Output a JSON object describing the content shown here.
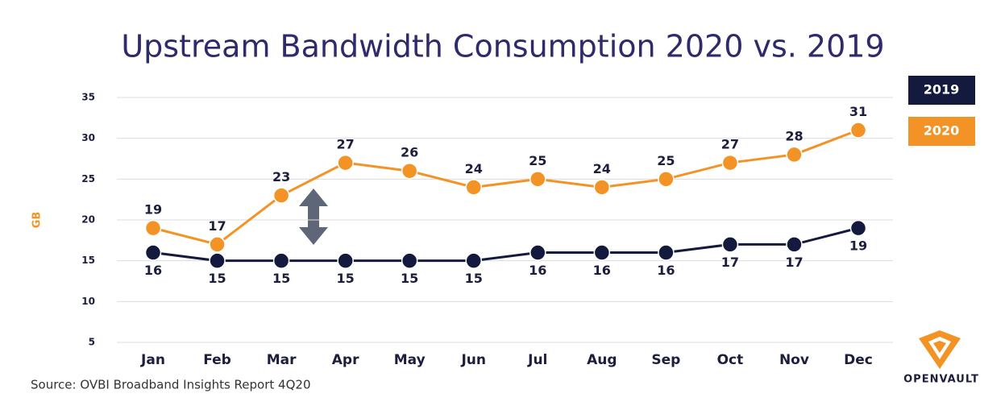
{
  "chart_data": {
    "type": "line",
    "title": "Upstream Bandwidth  Consumption 2020 vs. 2019",
    "y_label": "GB",
    "source": "Source: OVBI Broadband Insights Report 4Q20",
    "logo": "OPENVAULT",
    "categories": [
      "Jan",
      "Feb",
      "Mar",
      "Apr",
      "May",
      "Jun",
      "Jul",
      "Aug",
      "Sep",
      "Oct",
      "Nov",
      "Dec"
    ],
    "series": [
      {
        "name": "2019",
        "color": "#131a3d",
        "values": [
          16,
          15,
          15,
          15,
          15,
          15,
          16,
          16,
          16,
          17,
          17,
          19
        ]
      },
      {
        "name": "2020",
        "color": "#f39325",
        "values": [
          19,
          17,
          23,
          27,
          26,
          24,
          25,
          24,
          25,
          27,
          28,
          31
        ]
      }
    ],
    "ylim": [
      5,
      35
    ],
    "yticks": [
      5,
      10,
      15,
      20,
      25,
      30,
      35
    ],
    "grid": true,
    "legend": "right"
  }
}
